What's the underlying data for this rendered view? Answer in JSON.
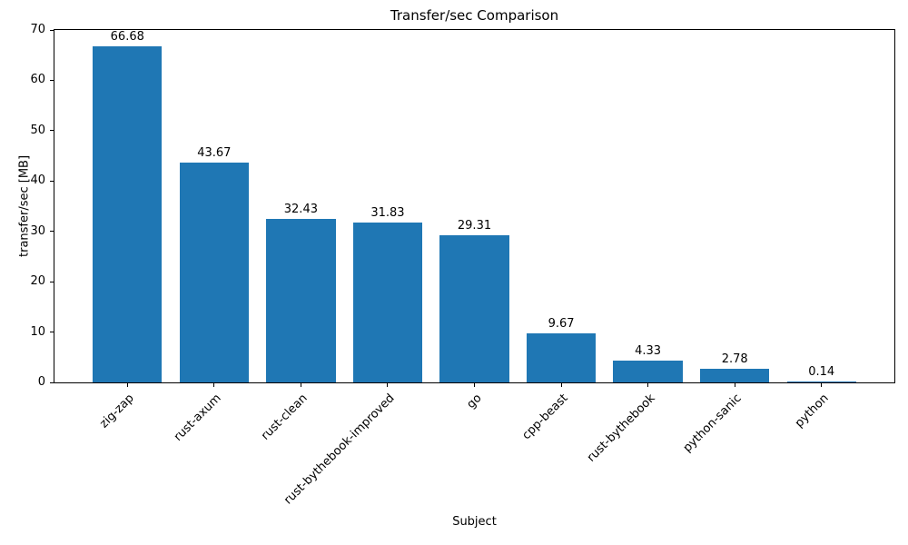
{
  "chart_data": {
    "type": "bar",
    "title": "Transfer/sec Comparison",
    "xlabel": "Subject",
    "ylabel": "transfer/sec [MB]",
    "categories": [
      "zig-zap",
      "rust-axum",
      "rust-clean",
      "rust-bythebook-improved",
      "go",
      "cpp-beast",
      "rust-bythebook",
      "python-sanic",
      "python"
    ],
    "values": [
      66.68,
      43.67,
      32.43,
      31.83,
      29.31,
      9.67,
      4.33,
      2.78,
      0.14
    ],
    "value_labels": [
      "66.68",
      "43.67",
      "32.43",
      "31.83",
      "29.31",
      "9.67",
      "4.33",
      "2.78",
      "0.14"
    ],
    "ylim": [
      0,
      70
    ],
    "yticks": [
      0,
      10,
      20,
      30,
      40,
      50,
      60,
      70
    ],
    "bar_color": "#1f77b4",
    "axis_color": "#000000",
    "text_color": "#000000",
    "grid": false,
    "legend": "none",
    "bar_width_fraction": 0.8,
    "x_tick_rotation_deg": 45
  }
}
